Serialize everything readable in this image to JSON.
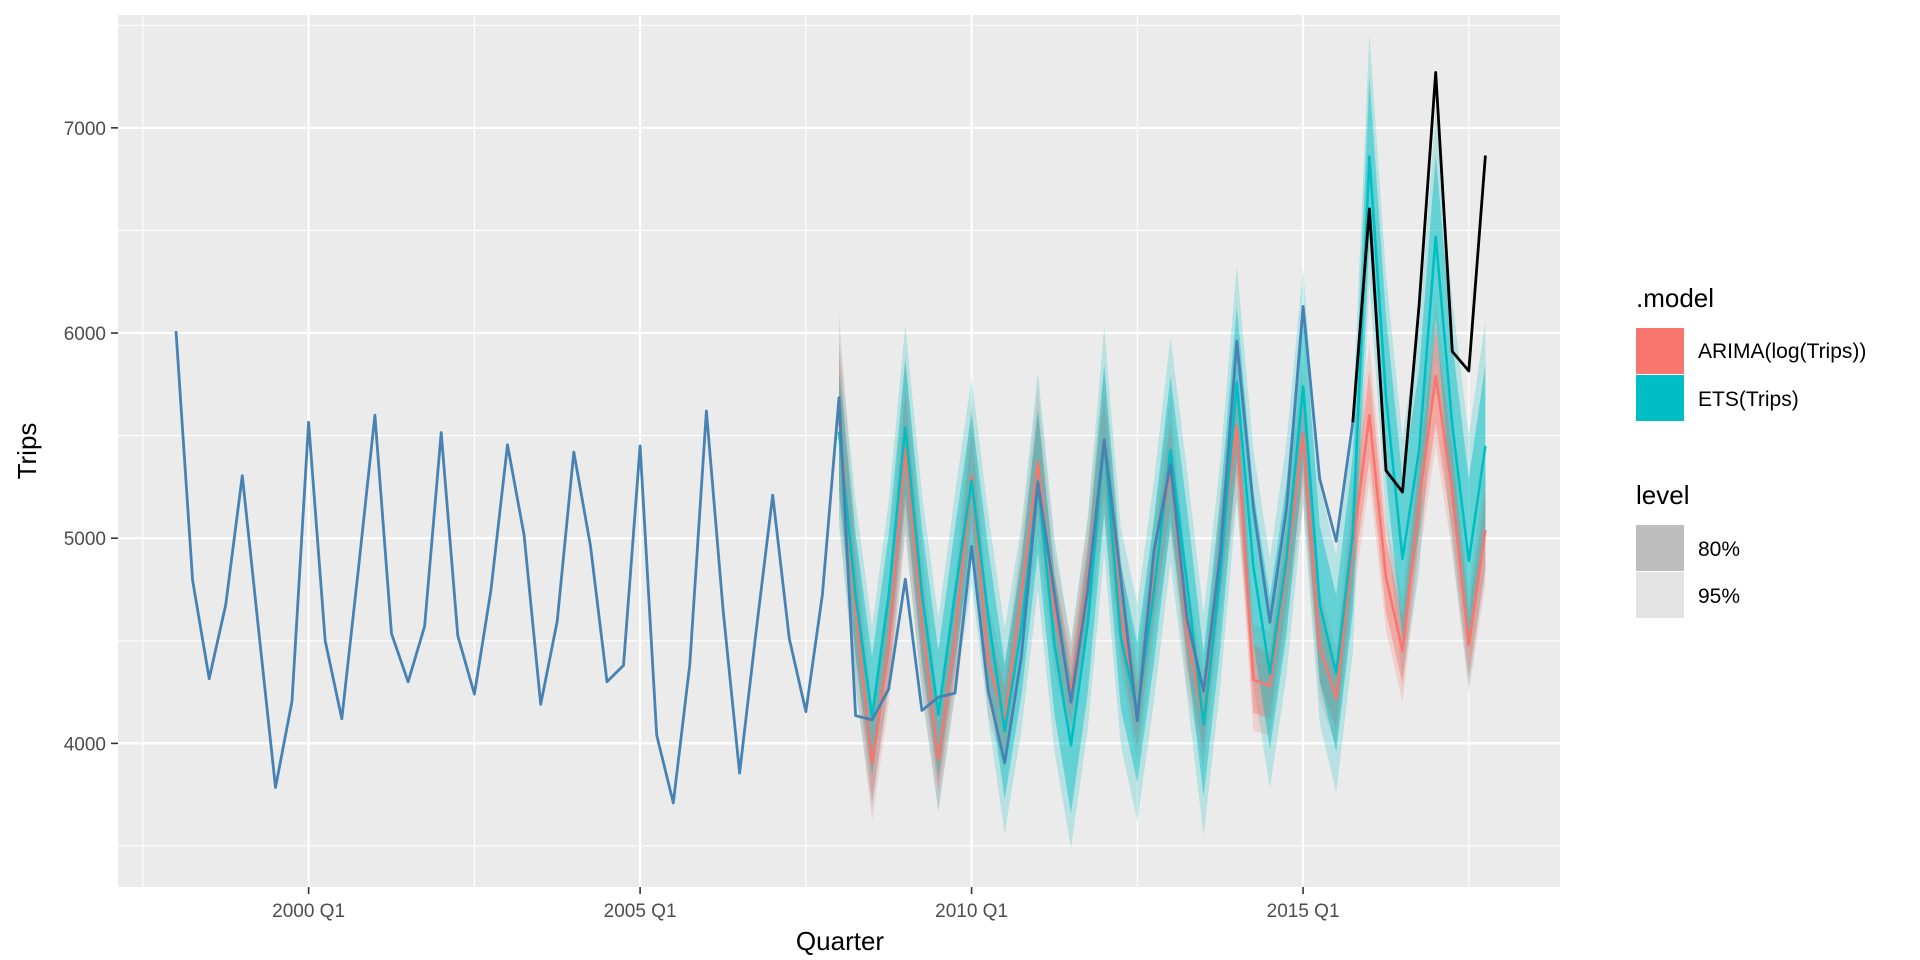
{
  "chart_data": {
    "type": "line",
    "title": "",
    "xlabel": "Quarter",
    "ylabel": "Trips",
    "ylim": [
      3300,
      7550
    ],
    "xlim": [
      1997.125,
      2018.875
    ],
    "y_ticks": [
      4000,
      5000,
      6000,
      7000
    ],
    "x_ticks": [
      {
        "label": "2000 Q1",
        "value": 2000.0
      },
      {
        "label": "2005 Q1",
        "value": 2005.0
      },
      {
        "label": "2010 Q1",
        "value": 2010.0
      },
      {
        "label": "2015 Q1",
        "value": 2015.0
      }
    ],
    "grid": true,
    "legend_position": "right",
    "colors": {
      "background": "#ebebeb",
      "grid": "#ffffff",
      "history": "#4682b4",
      "actual_test": "#000000",
      "arima": "#f8766d",
      "ets": "#00bfc4"
    },
    "history": {
      "name": "Trips",
      "start": 1998.0,
      "step": 0.25,
      "values": [
        6010,
        4795,
        4315,
        4675,
        5305,
        4540,
        3785,
        4205,
        5565,
        4500,
        4120,
        4845,
        5600,
        4535,
        4300,
        4570,
        5515,
        4525,
        4240,
        4745,
        5455,
        5015,
        4190,
        4595,
        5420,
        4965,
        4300,
        4380,
        5450,
        4040,
        3710,
        4385,
        5620,
        4655,
        3855,
        4545,
        5210,
        4510,
        4155,
        4725,
        5685,
        4135,
        4115,
        4265,
        4800,
        4160,
        4225,
        4245,
        4960,
        4255,
        3905,
        4420,
        5270,
        4730,
        4200,
        4745,
        5480,
        4805,
        4110,
        4935,
        5360,
        4605,
        4255,
        4920,
        5960,
        5150,
        4590,
        5145,
        6130,
        5290,
        4985,
        5565
      ]
    },
    "test_actual": {
      "start": 2015.75,
      "step": 0.25,
      "values": [
        5565,
        6605,
        5330,
        5225,
        6135,
        7270,
        5910,
        5815,
        6865
      ]
    },
    "forecasts": [
      {
        "name": "ARIMA(log(Trips))",
        "start": 2008.0,
        "step": 0.25,
        "mean": [
          5590,
          4650,
          3900,
          4480,
          5440,
          4590,
          3920,
          4520,
          5300,
          4400,
          4110,
          4720,
          5370,
          4640,
          4250,
          4800,
          5460,
          4630,
          4130,
          4790,
          5350,
          4530,
          4110,
          4920,
          5550,
          4310,
          4280,
          4860,
          5510,
          4470,
          4220,
          4960,
          5600,
          4810,
          4450,
          5180,
          5790,
          5230,
          4480,
          5040
        ],
        "lo80": [
          5270,
          4420,
          3720,
          4290,
          5160,
          4370,
          3760,
          4340,
          5070,
          4220,
          3950,
          4540,
          5140,
          4450,
          4090,
          4620,
          5230,
          4450,
          3980,
          4610,
          5140,
          4360,
          3960,
          4730,
          5320,
          4150,
          4120,
          4680,
          5280,
          4300,
          4070,
          4780,
          5390,
          4640,
          4290,
          5000,
          5560,
          5030,
          4330,
          4860
        ],
        "hi80": [
          5920,
          4890,
          4090,
          4680,
          5730,
          4820,
          4090,
          4700,
          5540,
          4580,
          4270,
          4900,
          5610,
          4830,
          4410,
          4980,
          5700,
          4810,
          4290,
          4970,
          5570,
          4700,
          4270,
          5110,
          5780,
          4480,
          4440,
          5050,
          5740,
          4650,
          4380,
          5150,
          5820,
          4990,
          4610,
          5370,
          6030,
          5440,
          4640,
          5230
        ],
        "lo95": [
          5110,
          4300,
          3620,
          4190,
          5020,
          4260,
          3670,
          4240,
          4950,
          4130,
          3870,
          4450,
          5020,
          4350,
          4000,
          4530,
          5110,
          4360,
          3900,
          4520,
          5030,
          4270,
          3880,
          4630,
          5200,
          4060,
          4040,
          4590,
          5170,
          4210,
          3990,
          4680,
          5280,
          4550,
          4200,
          4900,
          5450,
          4930,
          4250,
          4770
        ],
        "hi95": [
          6100,
          5020,
          4190,
          4790,
          5890,
          4940,
          4190,
          4810,
          5670,
          4680,
          4360,
          5000,
          5740,
          4940,
          4500,
          5080,
          5840,
          4910,
          4380,
          5080,
          5700,
          4800,
          4360,
          5220,
          5910,
          4580,
          4540,
          5160,
          5870,
          4750,
          4470,
          5260,
          5950,
          5090,
          4710,
          5490,
          6160,
          5550,
          4730,
          5350
        ]
      },
      {
        "name": "ETS(Trips)",
        "start": 2008.0,
        "step": 0.25,
        "mean": [
          5520,
          4720,
          4130,
          4720,
          5540,
          4730,
          4140,
          4730,
          5280,
          4620,
          4060,
          4560,
          5280,
          4480,
          3990,
          4580,
          5480,
          4520,
          4150,
          4740,
          5430,
          4780,
          4090,
          4820,
          5760,
          4860,
          4340,
          4900,
          5740,
          4680,
          4340,
          5020,
          6860,
          5690,
          4900,
          5430,
          6470,
          5550,
          4890,
          5450
        ],
        "lo80": [
          5220,
          4420,
          3840,
          4420,
          5210,
          4410,
          3830,
          4410,
          4950,
          4290,
          3730,
          4230,
          4930,
          4140,
          3660,
          4240,
          5120,
          4170,
          3810,
          4390,
          5070,
          4420,
          3740,
          4460,
          5390,
          4490,
          3970,
          4530,
          5360,
          4300,
          3960,
          4640,
          6470,
          5300,
          4510,
          5040,
          6070,
          5150,
          4490,
          5050
        ],
        "hi80": [
          5820,
          5020,
          4420,
          5020,
          5870,
          5050,
          4450,
          5050,
          5610,
          4950,
          4390,
          4890,
          5630,
          4820,
          4320,
          4920,
          5840,
          4870,
          4490,
          5090,
          5790,
          5140,
          4440,
          5180,
          6130,
          5230,
          4710,
          5270,
          6120,
          5060,
          4720,
          5400,
          7250,
          6080,
          5290,
          5820,
          6870,
          5950,
          5290,
          5850
        ],
        "lo95": [
          5060,
          4260,
          3690,
          4260,
          5040,
          4240,
          3670,
          4240,
          4780,
          4120,
          3560,
          4060,
          4750,
          3960,
          3490,
          4060,
          4930,
          3990,
          3620,
          4200,
          4880,
          4230,
          3550,
          4270,
          5190,
          4290,
          3780,
          4330,
          5160,
          4100,
          3760,
          4440,
          6260,
          5090,
          4310,
          4830,
          5860,
          4940,
          4280,
          4840
        ],
        "hi95": [
          5980,
          5180,
          4570,
          5180,
          6040,
          5220,
          4610,
          5220,
          5780,
          5120,
          4560,
          5060,
          5810,
          5000,
          4490,
          5100,
          6030,
          5050,
          4680,
          5280,
          5980,
          5330,
          4630,
          5370,
          6330,
          5430,
          4900,
          5470,
          6320,
          5260,
          4920,
          5600,
          7460,
          6290,
          5490,
          6030,
          7080,
          6160,
          5500,
          6060
        ]
      }
    ],
    "legend": {
      "model_title": ".model",
      "models": [
        {
          "label": "ARIMA(log(Trips))",
          "color": "#f8766d"
        },
        {
          "label": "ETS(Trips)",
          "color": "#00bfc4"
        }
      ],
      "level_title": "level",
      "levels": [
        {
          "label": "80%",
          "color": "#bebebe"
        },
        {
          "label": "95%",
          "color": "#e3e3e3"
        }
      ]
    }
  }
}
